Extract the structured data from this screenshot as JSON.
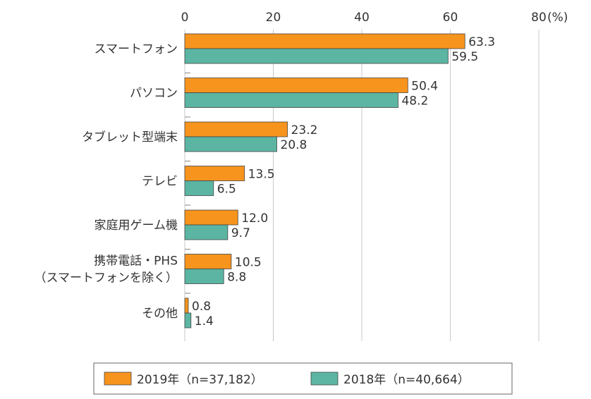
{
  "chart_data": {
    "type": "bar",
    "orientation": "horizontal",
    "unit_label": "(%)",
    "xlim": [
      0,
      80
    ],
    "ticks": [
      "0",
      "20",
      "40",
      "60",
      "80"
    ],
    "grid": true,
    "legend_position": "bottom",
    "categories": [
      [
        "スマートフォン"
      ],
      [
        "パソコン"
      ],
      [
        "タブレット型端末"
      ],
      [
        "テレビ"
      ],
      [
        "家庭用ゲーム機"
      ],
      [
        "携帯電話・PHS",
        "（スマートフォンを除く）"
      ],
      [
        "その他"
      ]
    ],
    "series": [
      {
        "name": "2019年（n=37,182）",
        "color": "#F7941D",
        "values": [
          63.3,
          50.4,
          23.2,
          13.5,
          12.0,
          10.5,
          0.8
        ],
        "labels": [
          "63.3",
          "50.4",
          "23.2",
          "13.5",
          "12.0",
          "10.5",
          "0.8"
        ]
      },
      {
        "name": "2018年（n=40,664）",
        "color": "#5BB5A2",
        "values": [
          59.5,
          48.2,
          20.8,
          6.5,
          9.7,
          8.8,
          1.4
        ],
        "labels": [
          "59.5",
          "48.2",
          "20.8",
          "6.5",
          "9.7",
          "8.8",
          "1.4"
        ]
      }
    ]
  }
}
